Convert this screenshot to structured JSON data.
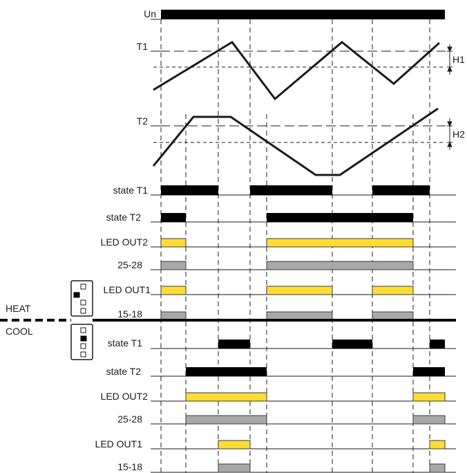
{
  "diagram": {
    "supply_label": "Un",
    "sensors": [
      {
        "label": "T1",
        "hysteresis_label": "H1"
      },
      {
        "label": "T2",
        "hysteresis_label": "H2"
      }
    ],
    "modes": {
      "heat_label": "HEAT",
      "cool_label": "COOL"
    },
    "heat_rows": [
      {
        "label": "state T1",
        "style": "black"
      },
      {
        "label": "state T2",
        "style": "black"
      },
      {
        "label": "LED OUT2",
        "style": "yellow"
      },
      {
        "label": "25-28",
        "style": "gray"
      },
      {
        "label": "LED OUT1",
        "style": "yellow"
      },
      {
        "label": "15-18",
        "style": "gray"
      }
    ],
    "cool_rows": [
      {
        "label": "state T1",
        "style": "black"
      },
      {
        "label": "state T2",
        "style": "black"
      },
      {
        "label": "LED OUT2",
        "style": "yellow"
      },
      {
        "label": "25-28",
        "style": "gray"
      },
      {
        "label": "LED OUT1",
        "style": "yellow"
      },
      {
        "label": "15-18",
        "style": "gray"
      }
    ],
    "colors": {
      "state_bar": "#000000",
      "led_bar": "#ffdd33",
      "contact_bar": "#a8a8a8"
    }
  }
}
